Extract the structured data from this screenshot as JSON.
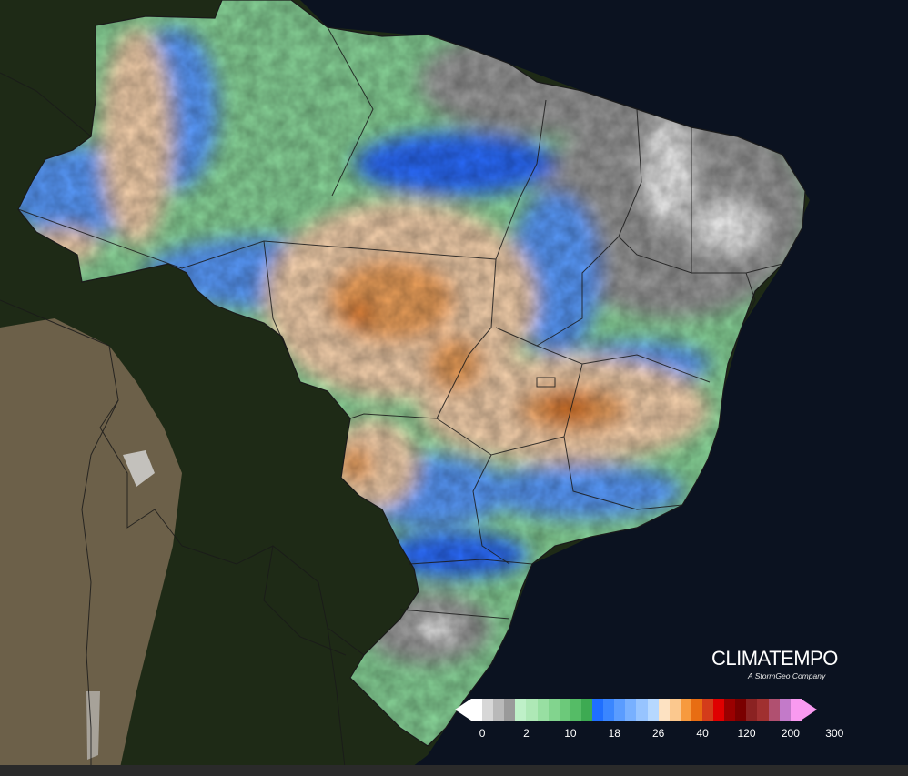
{
  "brand": {
    "title": "CLIMATEMPO",
    "subtitle": "A StormGeo Company"
  },
  "legend": {
    "colors": [
      "#ffffff",
      "#d7d7d7",
      "#b9b9b9",
      "#9a9a9a",
      "#bff0c8",
      "#aee8b6",
      "#98dfa2",
      "#82d48e",
      "#6cc97a",
      "#55bc66",
      "#3daa52",
      "#1f6fff",
      "#3a86ff",
      "#5a9cff",
      "#78b0ff",
      "#97c4ff",
      "#b6d8ff",
      "#fde2c2",
      "#fbc88e",
      "#f79a3e",
      "#e86d12",
      "#d43c1a",
      "#e00000",
      "#9a0000",
      "#7a0000",
      "#8b2222",
      "#a03030",
      "#b05070",
      "#c37ac9",
      "#f99af0"
    ],
    "ticks": [
      {
        "label": "0",
        "index": 1
      },
      {
        "label": "2",
        "index": 5
      },
      {
        "label": "10",
        "index": 9
      },
      {
        "label": "18",
        "index": 13
      },
      {
        "label": "26",
        "index": 17
      },
      {
        "label": "40",
        "index": 21
      },
      {
        "label": "120",
        "index": 25
      },
      {
        "label": "200",
        "index": 29
      },
      {
        "label": "300",
        "index": 33
      }
    ]
  },
  "map": {
    "colors": {
      "ocean": "#0b1220",
      "land_dark": "#1e2a16",
      "andes": "#7a6a52",
      "gray": "#9a9a9a",
      "white": "#f2f2f2",
      "green": "#8ad79a",
      "green_dark": "#4aae62",
      "blue": "#5a9cff",
      "blue_dark": "#2a6cff",
      "peach": "#f8d3ae",
      "orange": "#f1a35c",
      "orange_dark": "#d26a14",
      "border": "#1a1a1a"
    }
  }
}
